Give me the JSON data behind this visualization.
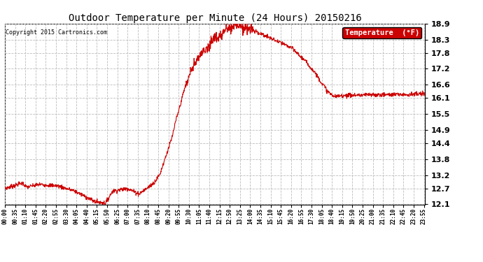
{
  "title": "Outdoor Temperature per Minute (24 Hours) 20150216",
  "copyright_text": "Copyright 2015 Cartronics.com",
  "legend_label": "Temperature  (°F)",
  "line_color": "#cc0000",
  "legend_bg": "#cc0000",
  "legend_text_color": "#ffffff",
  "background_color": "#ffffff",
  "plot_bg_color": "#ffffff",
  "grid_color": "#bbbbbb",
  "title_color": "#000000",
  "yticks": [
    12.1,
    12.7,
    13.2,
    13.8,
    14.4,
    14.9,
    15.5,
    16.1,
    16.6,
    17.2,
    17.8,
    18.3,
    18.9
  ],
  "xtick_labels": [
    "00:00",
    "00:35",
    "01:10",
    "01:45",
    "02:20",
    "02:55",
    "03:30",
    "04:05",
    "04:40",
    "05:15",
    "05:50",
    "06:25",
    "07:00",
    "07:35",
    "08:10",
    "08:45",
    "09:20",
    "09:55",
    "10:30",
    "11:05",
    "11:40",
    "12:15",
    "12:50",
    "13:25",
    "14:00",
    "14:35",
    "15:10",
    "15:45",
    "16:20",
    "16:55",
    "17:30",
    "18:05",
    "18:40",
    "19:15",
    "19:50",
    "20:25",
    "21:00",
    "21:35",
    "22:10",
    "22:45",
    "23:20",
    "23:55"
  ],
  "ymin": 12.1,
  "ymax": 18.9,
  "segments": [
    {
      "x": [
        0,
        60
      ],
      "y": [
        12.7,
        12.9
      ]
    },
    {
      "x": [
        60,
        75
      ],
      "y": [
        12.9,
        12.75
      ]
    },
    {
      "x": [
        75,
        120
      ],
      "y": [
        12.75,
        12.85
      ]
    },
    {
      "x": [
        120,
        180
      ],
      "y": [
        12.85,
        12.8
      ]
    },
    {
      "x": [
        180,
        240
      ],
      "y": [
        12.8,
        12.6
      ]
    },
    {
      "x": [
        240,
        310
      ],
      "y": [
        12.6,
        12.2
      ]
    },
    {
      "x": [
        310,
        345
      ],
      "y": [
        12.2,
        12.15
      ]
    },
    {
      "x": [
        345,
        370
      ],
      "y": [
        12.15,
        12.6
      ]
    },
    {
      "x": [
        370,
        420
      ],
      "y": [
        12.6,
        12.7
      ]
    },
    {
      "x": [
        420,
        460
      ],
      "y": [
        12.7,
        12.5
      ]
    },
    {
      "x": [
        460,
        480
      ],
      "y": [
        12.5,
        12.65
      ]
    },
    {
      "x": [
        480,
        510
      ],
      "y": [
        12.65,
        12.9
      ]
    },
    {
      "x": [
        510,
        530
      ],
      "y": [
        12.9,
        13.2
      ]
    },
    {
      "x": [
        530,
        570
      ],
      "y": [
        13.2,
        14.5
      ]
    },
    {
      "x": [
        570,
        590
      ],
      "y": [
        14.5,
        15.4
      ]
    },
    {
      "x": [
        590,
        620
      ],
      "y": [
        15.4,
        16.6
      ]
    },
    {
      "x": [
        620,
        650
      ],
      "y": [
        16.6,
        17.4
      ]
    },
    {
      "x": [
        650,
        680
      ],
      "y": [
        17.4,
        17.9
      ]
    },
    {
      "x": [
        680,
        710
      ],
      "y": [
        17.9,
        18.2
      ]
    },
    {
      "x": [
        710,
        730
      ],
      "y": [
        18.2,
        18.35
      ]
    },
    {
      "x": [
        730,
        760
      ],
      "y": [
        18.35,
        18.7
      ]
    },
    {
      "x": [
        760,
        790
      ],
      "y": [
        18.7,
        18.9
      ]
    },
    {
      "x": [
        790,
        820
      ],
      "y": [
        18.9,
        18.75
      ]
    },
    {
      "x": [
        820,
        860
      ],
      "y": [
        18.75,
        18.6
      ]
    },
    {
      "x": [
        860,
        900
      ],
      "y": [
        18.6,
        18.4
      ]
    },
    {
      "x": [
        900,
        940
      ],
      "y": [
        18.4,
        18.2
      ]
    },
    {
      "x": [
        940,
        980
      ],
      "y": [
        18.2,
        18.0
      ]
    },
    {
      "x": [
        980,
        1020
      ],
      "y": [
        18.0,
        17.6
      ]
    },
    {
      "x": [
        1020,
        1060
      ],
      "y": [
        17.6,
        17.1
      ]
    },
    {
      "x": [
        1060,
        1090
      ],
      "y": [
        17.1,
        16.6
      ]
    },
    {
      "x": [
        1090,
        1110
      ],
      "y": [
        16.6,
        16.3
      ]
    },
    {
      "x": [
        1110,
        1130
      ],
      "y": [
        16.3,
        16.15
      ]
    },
    {
      "x": [
        1130,
        1160
      ],
      "y": [
        16.15,
        16.2
      ]
    },
    {
      "x": [
        1160,
        1440
      ],
      "y": [
        16.2,
        16.25
      ]
    }
  ]
}
